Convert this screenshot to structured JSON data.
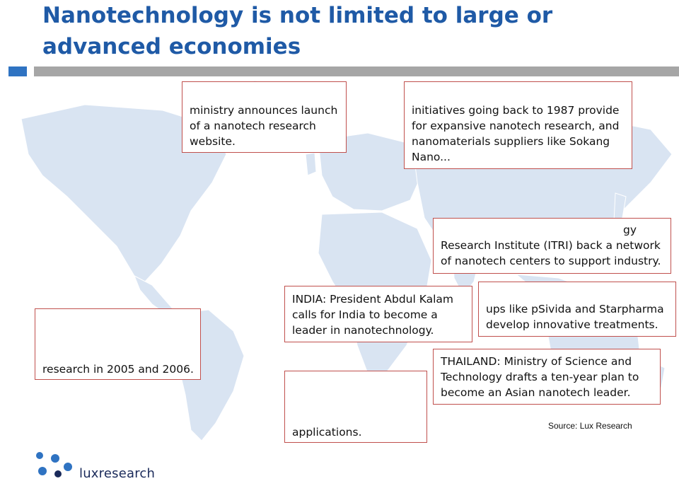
{
  "title": "Nanotechnology is not limited to large or advanced economies",
  "callouts": {
    "top_left": [
      "ministry announces launch",
      "of a nanotech research",
      "website."
    ],
    "top_right": [
      "initiatives going back to 1987 provide",
      "for expansive nanotech research, and",
      "nanomaterials suppliers like Sokang",
      "Nano..."
    ],
    "taiwan": [
      "gy",
      "Research Institute (ITRI) back a network",
      "of nanotech centers to support industry."
    ],
    "india": [
      "INDIA: President Abdul Kalam",
      "calls for India to become a",
      "leader in nanotechnology."
    ],
    "australia": [
      "ups like pSivida and Starpharma",
      "develop innovative treatments."
    ],
    "left": [
      "research in 2005 and 2006."
    ],
    "thailand": [
      "THAILAND: Ministry of Science and",
      "Technology drafts a ten-year plan to",
      "become an Asian nanotech leader."
    ],
    "bottom": [
      "applications."
    ]
  },
  "source": "Source: Lux Research",
  "logo": {
    "text": "luxresearch",
    "icon": "lux-dots-logo-icon"
  },
  "colors": {
    "title": "#1f5aa6",
    "callout_border": "#c0504d",
    "map": "#d9e4f2",
    "bar_gray": "#a6a6a6",
    "bar_blue": "#2f73c2"
  }
}
